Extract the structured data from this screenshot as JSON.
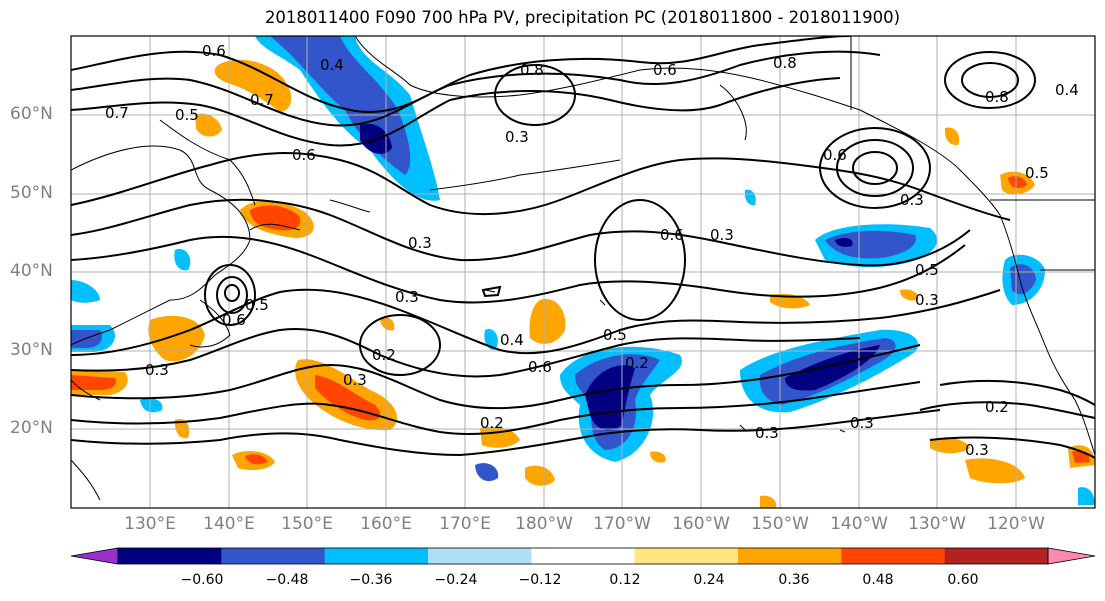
{
  "title": "2018011400 F090 700 hPa PV, precipitation PC (2018011800 - 2018011900)",
  "lat_labels": [
    "60°N",
    "50°N",
    "40°N",
    "30°N",
    "20°N"
  ],
  "lon_labels": [
    "130°E",
    "140°E",
    "150°E",
    "160°E",
    "170°E",
    "180°W",
    "170°W",
    "160°W",
    "150°W",
    "140°W",
    "130°W",
    "120°W"
  ],
  "colorbar": {
    "labels": [
      "−0.60",
      "−0.48",
      "−0.36",
      "−0.24",
      "−0.12",
      "0.12",
      "0.24",
      "0.36",
      "0.48",
      "0.60"
    ],
    "colors": [
      "#9932cc",
      "#000080",
      "#3355cc",
      "#00bfff",
      "#b0e0f8",
      "#ffffff",
      "#ffe680",
      "#ffa500",
      "#ff4500",
      "#b22222",
      "#ff88b0"
    ]
  },
  "contour_labels": [
    "0.6",
    "0.7",
    "0.5",
    "0.6",
    "0.7",
    "0.4",
    "0.8",
    "0.6",
    "0.8",
    "0.4",
    "0.3",
    "0.6",
    "0.8",
    "0.5",
    "0.3",
    "0.6",
    "0.3",
    "0.5",
    "0.3",
    "0.5",
    "0.6",
    "0.3",
    "0.2",
    "0.3",
    "0.3",
    "0.4",
    "0.5",
    "0.6",
    "0.2",
    "0.2",
    "0.3",
    "0.3",
    "0.2",
    "0.3",
    "0.3"
  ],
  "colors": {
    "contour": "#000000",
    "grid": "#b0b0b0",
    "coast": "#000000"
  }
}
